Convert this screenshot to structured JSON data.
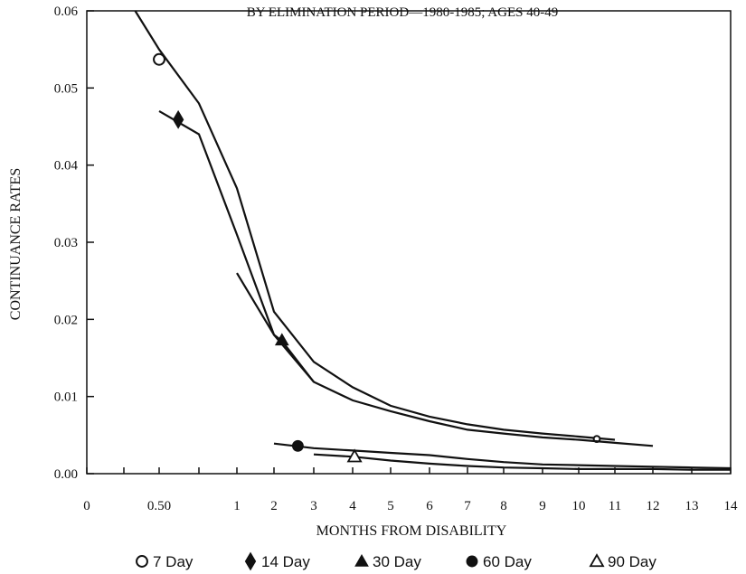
{
  "chart_data": {
    "type": "line",
    "title": "BY ELIMINATION PERIOD—1980-1985; AGES 40-49",
    "xlabel": "MONTHS FROM DISABILITY",
    "ylabel": "CONTINUANCE RATES",
    "x_tick_labels": [
      "0",
      "0.50",
      "1",
      "2",
      "3",
      "4",
      "5",
      "6",
      "7",
      "8",
      "9",
      "10",
      "11",
      "12",
      "13",
      "14"
    ],
    "y_ticks": [
      0.0,
      0.01,
      0.02,
      0.03,
      0.04,
      0.05,
      0.06
    ],
    "y_tick_labels": [
      "0.00",
      "0.01",
      "0.02",
      "0.03",
      "0.04",
      "0.05",
      "0.06"
    ],
    "ylim": [
      0,
      0.06
    ],
    "legend_position": "bottom",
    "grid": false,
    "series": [
      {
        "name": "7 Day",
        "marker": "open-circle",
        "points": [
          [
            0.33,
            0.06
          ],
          [
            0.5,
            0.055
          ],
          [
            0.75,
            0.048
          ],
          [
            1,
            0.037
          ],
          [
            2,
            0.021
          ],
          [
            3,
            0.0145
          ],
          [
            4,
            0.0112
          ],
          [
            5,
            0.0088
          ],
          [
            6,
            0.0074
          ],
          [
            7,
            0.0064
          ],
          [
            8,
            0.0057
          ],
          [
            9,
            0.0052
          ],
          [
            10,
            0.0048
          ],
          [
            11,
            0.0044
          ]
        ],
        "marker_points": [
          [
            0.5,
            0.0537
          ],
          [
            10.5,
            0.0045
          ]
        ]
      },
      {
        "name": "14 Day",
        "marker": "filled-diamond",
        "points": [
          [
            0.5,
            0.047
          ],
          [
            0.75,
            0.044
          ],
          [
            1,
            0.031
          ],
          [
            2,
            0.018
          ],
          [
            3,
            0.0119
          ],
          [
            4,
            0.0095
          ],
          [
            5,
            0.0081
          ],
          [
            6,
            0.0068
          ],
          [
            7,
            0.0057
          ],
          [
            8,
            0.0052
          ],
          [
            9,
            0.0047
          ],
          [
            10,
            0.0044
          ],
          [
            11,
            0.004
          ],
          [
            12,
            0.0036
          ]
        ],
        "marker_points": [
          [
            0.62,
            0.0459
          ]
        ]
      },
      {
        "name": "30 Day",
        "marker": "filled-triangle",
        "points": [
          [
            1,
            0.026
          ],
          [
            1.5,
            0.022
          ],
          [
            2,
            0.018
          ],
          [
            2.2,
            0.0172
          ],
          [
            3,
            0.0119
          ]
        ],
        "marker_points": [
          [
            2.2,
            0.0173
          ]
        ]
      },
      {
        "name": "60 Day",
        "marker": "filled-circle",
        "points": [
          [
            2,
            0.0039
          ],
          [
            3,
            0.0033
          ],
          [
            4,
            0.003
          ],
          [
            5,
            0.0027
          ],
          [
            6,
            0.0024
          ],
          [
            7,
            0.0019
          ],
          [
            8,
            0.0015
          ],
          [
            9,
            0.0012
          ],
          [
            10,
            0.0011
          ],
          [
            11,
            0.001
          ],
          [
            12,
            0.0009
          ],
          [
            13,
            0.0008
          ],
          [
            14,
            0.0007
          ]
        ],
        "marker_points": [
          [
            2.6,
            0.0036
          ]
        ]
      },
      {
        "name": "90 Day",
        "marker": "open-triangle",
        "points": [
          [
            3,
            0.0025
          ],
          [
            4,
            0.0022
          ],
          [
            5,
            0.0017
          ],
          [
            6,
            0.0013
          ],
          [
            7,
            0.001
          ],
          [
            8,
            0.0008
          ],
          [
            9,
            0.0007
          ],
          [
            10,
            0.0006
          ],
          [
            11,
            0.0006
          ],
          [
            12,
            0.0006
          ],
          [
            13,
            0.0005
          ],
          [
            14,
            0.0005
          ]
        ],
        "marker_points": [
          [
            4.05,
            0.0022
          ]
        ]
      }
    ]
  }
}
